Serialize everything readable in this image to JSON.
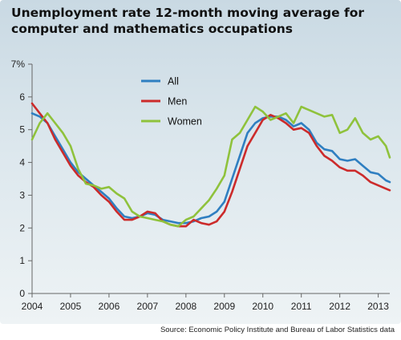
{
  "chart_data": {
    "type": "line",
    "title": "Unemployment rate 12-month moving average for computer and mathematics occupations",
    "xlabel": "",
    "ylabel": "",
    "source": "Source: Economic Policy Institute and Bureau of Labor Statistics data",
    "x_ticks": [
      "2004",
      "2005",
      "2006",
      "2007",
      "2008",
      "2009",
      "2010",
      "2011",
      "2012",
      "2013"
    ],
    "y_ticks": [
      "0",
      "1",
      "2",
      "3",
      "4",
      "5",
      "6",
      "7%"
    ],
    "xlim": [
      2004,
      2013.3
    ],
    "ylim": [
      0,
      7
    ],
    "grid": false,
    "legend": "top-left",
    "series": [
      {
        "name": "All",
        "color": "#2f7fc1",
        "x": [
          2004.0,
          2004.2,
          2004.4,
          2004.6,
          2004.8,
          2005.0,
          2005.2,
          2005.4,
          2005.6,
          2005.8,
          2006.0,
          2006.2,
          2006.4,
          2006.6,
          2006.8,
          2007.0,
          2007.2,
          2007.4,
          2007.6,
          2007.8,
          2008.0,
          2008.2,
          2008.4,
          2008.6,
          2008.8,
          2009.0,
          2009.2,
          2009.4,
          2009.6,
          2009.8,
          2010.0,
          2010.2,
          2010.4,
          2010.6,
          2010.8,
          2011.0,
          2011.2,
          2011.4,
          2011.6,
          2011.8,
          2012.0,
          2012.2,
          2012.4,
          2012.6,
          2012.8,
          2013.0,
          2013.2,
          2013.3
        ],
        "values": [
          5.5,
          5.4,
          5.2,
          4.8,
          4.4,
          4.0,
          3.7,
          3.5,
          3.3,
          3.1,
          2.9,
          2.6,
          2.35,
          2.3,
          2.35,
          2.45,
          2.4,
          2.25,
          2.2,
          2.15,
          2.15,
          2.2,
          2.3,
          2.35,
          2.5,
          2.8,
          3.5,
          4.2,
          4.9,
          5.2,
          5.35,
          5.4,
          5.4,
          5.3,
          5.1,
          5.2,
          5.0,
          4.6,
          4.4,
          4.35,
          4.1,
          4.05,
          4.1,
          3.9,
          3.7,
          3.65,
          3.45,
          3.4
        ]
      },
      {
        "name": "Men",
        "color": "#cc2b2b",
        "x": [
          2004.0,
          2004.2,
          2004.4,
          2004.6,
          2004.8,
          2005.0,
          2005.2,
          2005.4,
          2005.6,
          2005.8,
          2006.0,
          2006.2,
          2006.4,
          2006.6,
          2006.8,
          2007.0,
          2007.2,
          2007.4,
          2007.6,
          2007.8,
          2008.0,
          2008.2,
          2008.4,
          2008.6,
          2008.8,
          2009.0,
          2009.2,
          2009.4,
          2009.6,
          2009.8,
          2010.0,
          2010.2,
          2010.4,
          2010.6,
          2010.8,
          2011.0,
          2011.2,
          2011.4,
          2011.6,
          2011.8,
          2012.0,
          2012.2,
          2012.4,
          2012.6,
          2012.8,
          2013.0,
          2013.2,
          2013.3
        ],
        "values": [
          5.8,
          5.5,
          5.2,
          4.7,
          4.3,
          3.9,
          3.6,
          3.4,
          3.25,
          3.0,
          2.8,
          2.5,
          2.25,
          2.25,
          2.35,
          2.5,
          2.45,
          2.2,
          2.1,
          2.05,
          2.05,
          2.25,
          2.15,
          2.1,
          2.2,
          2.5,
          3.1,
          3.8,
          4.5,
          4.9,
          5.3,
          5.45,
          5.35,
          5.2,
          5.0,
          5.05,
          4.9,
          4.5,
          4.2,
          4.05,
          3.85,
          3.75,
          3.75,
          3.6,
          3.4,
          3.3,
          3.2,
          3.15
        ]
      },
      {
        "name": "Women",
        "color": "#8fc23c",
        "x": [
          2004.0,
          2004.2,
          2004.4,
          2004.6,
          2004.8,
          2005.0,
          2005.2,
          2005.4,
          2005.6,
          2005.8,
          2006.0,
          2006.2,
          2006.4,
          2006.6,
          2006.8,
          2007.0,
          2007.2,
          2007.4,
          2007.6,
          2007.8,
          2008.0,
          2008.2,
          2008.4,
          2008.6,
          2008.8,
          2009.0,
          2009.2,
          2009.4,
          2009.6,
          2009.8,
          2010.0,
          2010.2,
          2010.4,
          2010.6,
          2010.8,
          2011.0,
          2011.2,
          2011.4,
          2011.6,
          2011.8,
          2012.0,
          2012.2,
          2012.4,
          2012.6,
          2012.8,
          2013.0,
          2013.2,
          2013.3
        ],
        "values": [
          4.7,
          5.2,
          5.5,
          5.2,
          4.9,
          4.5,
          3.8,
          3.35,
          3.3,
          3.2,
          3.25,
          3.05,
          2.9,
          2.5,
          2.35,
          2.3,
          2.25,
          2.2,
          2.1,
          2.05,
          2.25,
          2.35,
          2.6,
          2.85,
          3.2,
          3.6,
          4.7,
          4.9,
          5.3,
          5.7,
          5.55,
          5.3,
          5.4,
          5.5,
          5.2,
          5.7,
          5.6,
          5.5,
          5.4,
          5.45,
          4.9,
          5.0,
          5.35,
          4.9,
          4.7,
          4.8,
          4.5,
          4.15
        ]
      }
    ]
  }
}
